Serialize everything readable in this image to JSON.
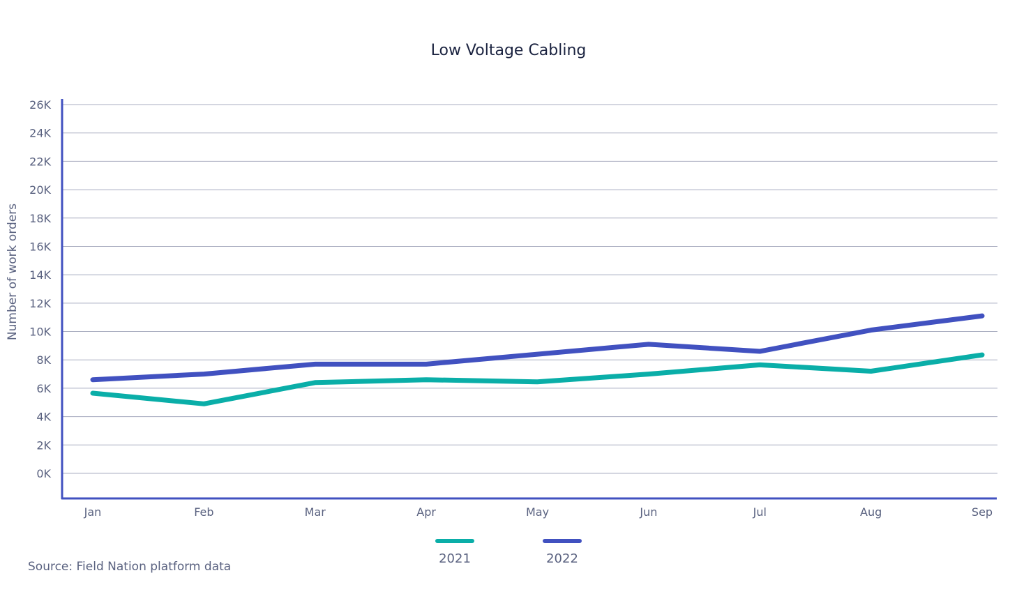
{
  "chart_data": {
    "type": "line",
    "title": "Low Voltage Cabling",
    "xlabel": "",
    "ylabel": "Number of work orders",
    "categories": [
      "Jan",
      "Feb",
      "Mar",
      "Apr",
      "May",
      "Jun",
      "Jul",
      "Aug",
      "Sep"
    ],
    "series": [
      {
        "name": "2021",
        "color": "#0aaea8",
        "values": [
          5650,
          4900,
          6400,
          6600,
          6450,
          7000,
          7650,
          7200,
          8350
        ]
      },
      {
        "name": "2022",
        "color": "#4151c0",
        "values": [
          6600,
          7000,
          7700,
          7700,
          8400,
          9100,
          8600,
          10100,
          11100
        ]
      }
    ],
    "yticks": [
      0,
      2000,
      4000,
      6000,
      8000,
      10000,
      12000,
      14000,
      16000,
      18000,
      20000,
      22000,
      24000,
      26000
    ],
    "ytick_labels": [
      "0K",
      "2K",
      "4K",
      "6K",
      "8K",
      "10K",
      "12K",
      "14K",
      "16K",
      "18K",
      "20K",
      "22K",
      "24K",
      "26K"
    ],
    "ylim": [
      -1800,
      26000
    ],
    "grid": true,
    "legend": "bottom-center",
    "source": "Source: Field Nation platform data"
  }
}
